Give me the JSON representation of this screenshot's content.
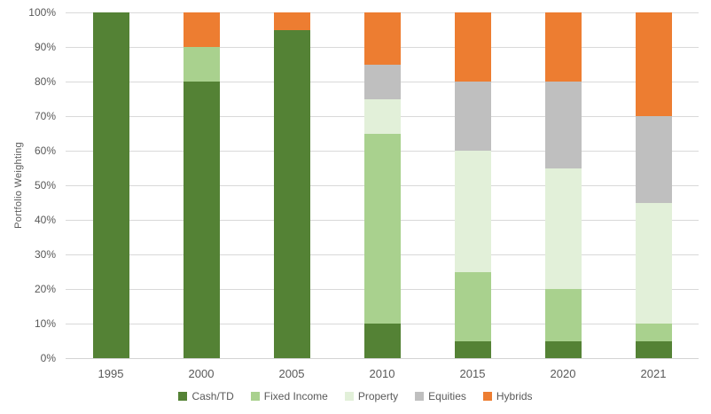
{
  "chart_data": {
    "type": "bar",
    "stacked": true,
    "title": "",
    "xlabel": "",
    "ylabel": "Portfolio Weighting",
    "ylim": [
      0,
      100
    ],
    "grid": true,
    "legend_position": "bottom",
    "y_ticks": [
      "0%",
      "10%",
      "20%",
      "30%",
      "40%",
      "50%",
      "60%",
      "70%",
      "80%",
      "90%",
      "100%"
    ],
    "categories": [
      "1995",
      "2000",
      "2005",
      "2010",
      "2015",
      "2020",
      "2021"
    ],
    "series": [
      {
        "name": "Cash/TD",
        "color": "#548235",
        "values": [
          100,
          80,
          95,
          10,
          5,
          5,
          5
        ]
      },
      {
        "name": "Fixed Income",
        "color": "#a9d18e",
        "values": [
          0,
          10,
          0,
          55,
          20,
          15,
          5
        ]
      },
      {
        "name": "Property",
        "color": "#e2f0d9",
        "values": [
          0,
          0,
          0,
          10,
          35,
          35,
          35
        ]
      },
      {
        "name": "Equities",
        "color": "#bfbfbf",
        "values": [
          0,
          0,
          0,
          10,
          20,
          25,
          25
        ]
      },
      {
        "name": "Hybrids",
        "color": "#ed7d31",
        "values": [
          0,
          10,
          5,
          15,
          20,
          20,
          30
        ]
      }
    ]
  },
  "colors": {
    "axis_text": "#595959",
    "gridline": "#d9d9d9",
    "background": "#ffffff"
  }
}
